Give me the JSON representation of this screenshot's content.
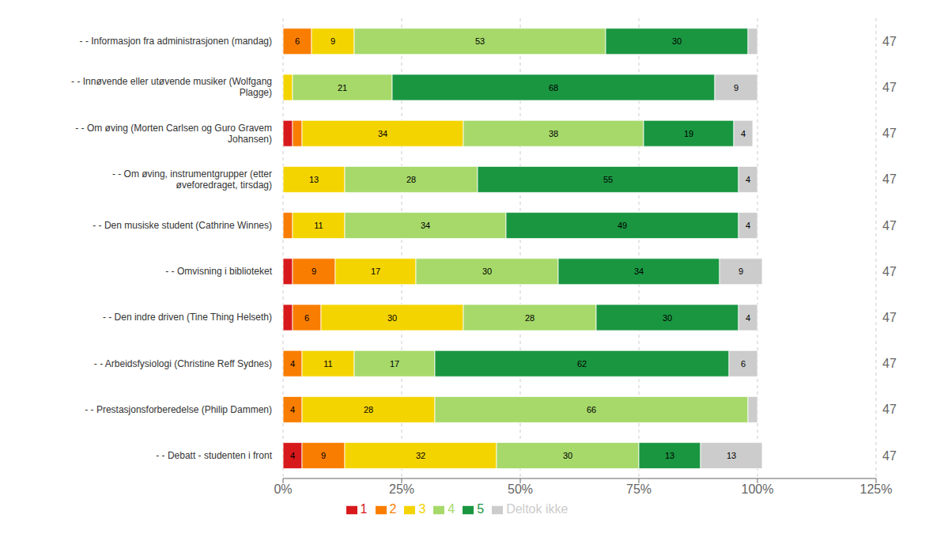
{
  "chart_data": {
    "type": "bar",
    "orientation": "horizontal",
    "stacked": true,
    "grid": true,
    "legend": "bottom",
    "data_labels": true,
    "categories": [
      "- - Informasjon fra administrasjonen (mandag)",
      "- - Innøvende eller utøvende musiker (Wolfgang\nPlagge)",
      "- - Om øving (Morten Carlsen og Guro Gravem\nJohansen)",
      "- - Om øving, instrumentgrupper (etter\nøveforedraget, tirsdag)",
      "- - Den musiske student (Cathrine Winnes)",
      "- - Omvisning i biblioteket",
      "- - Den indre driven (Tine Thing Helseth)",
      "- - Arbeidsfysiologi (Christine Reff Sydnes)",
      "- - Prestasjonsforberedelse (Philip Dammen)",
      "- - Debatt - studenten i front"
    ],
    "series": [
      {
        "name": "1",
        "color": "#d7191c",
        "values": [
          0,
          0,
          2,
          0,
          0,
          2,
          2,
          0,
          0,
          4
        ],
        "value_labels": [
          null,
          null,
          null,
          null,
          null,
          null,
          null,
          null,
          null,
          "4"
        ]
      },
      {
        "name": "2",
        "color": "#f97d00",
        "values": [
          6,
          0,
          2,
          0,
          2,
          9,
          6,
          4,
          4,
          9
        ],
        "value_labels": [
          "6",
          null,
          null,
          null,
          null,
          "9",
          "6",
          "4",
          "4",
          "9"
        ]
      },
      {
        "name": "3",
        "color": "#f4d400",
        "values": [
          9,
          2,
          34,
          13,
          11,
          17,
          30,
          11,
          28,
          32
        ],
        "value_labels": [
          "9",
          null,
          "34",
          "13",
          "11",
          "17",
          "30",
          "11",
          "28",
          "32"
        ]
      },
      {
        "name": "4",
        "color": "#a6d96a",
        "values": [
          53,
          21,
          38,
          28,
          34,
          30,
          28,
          17,
          66,
          30
        ],
        "value_labels": [
          "53",
          "21",
          "38",
          "28",
          "34",
          "30",
          "28",
          "17",
          "66",
          "30"
        ]
      },
      {
        "name": "5",
        "color": "#1a9641",
        "values": [
          30,
          68,
          19,
          55,
          49,
          34,
          30,
          62,
          0,
          13
        ],
        "value_labels": [
          "30",
          "68",
          "19",
          "55",
          "49",
          "34",
          "30",
          "62",
          null,
          "13"
        ]
      },
      {
        "name": "Deltok ikke",
        "color": "#cccccc",
        "values": [
          2,
          9,
          4,
          4,
          4,
          9,
          4,
          6,
          2,
          13
        ],
        "value_labels": [
          null,
          "9",
          "4",
          "4",
          "4",
          "9",
          "4",
          "6",
          null,
          "13"
        ]
      }
    ],
    "n_values": [
      47,
      47,
      47,
      47,
      47,
      47,
      47,
      47,
      47,
      47
    ],
    "xlim": [
      0,
      125
    ],
    "xticks": [
      {
        "value": 0,
        "label": "0%"
      },
      {
        "value": 25,
        "label": "25%"
      },
      {
        "value": 50,
        "label": "50%"
      },
      {
        "value": 75,
        "label": "75%"
      },
      {
        "value": 100,
        "label": "100%"
      },
      {
        "value": 125,
        "label": "125%"
      }
    ]
  }
}
